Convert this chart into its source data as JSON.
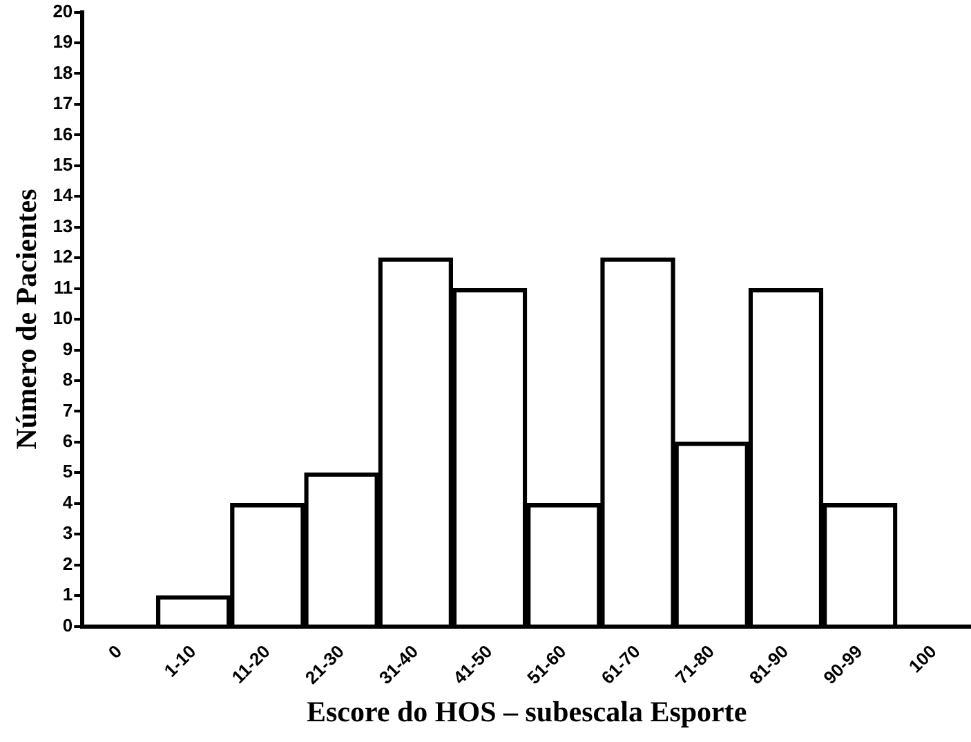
{
  "chart_data": {
    "type": "bar",
    "xlabel": "Escore do HOS – subescala Esporte",
    "ylabel": "Número de Pacientes",
    "categories": [
      "0",
      "1-10",
      "11-20",
      "21-30",
      "31-40",
      "41-50",
      "51-60",
      "61-70",
      "71-80",
      "81-90",
      "90-99",
      "100"
    ],
    "values": [
      0,
      1,
      4,
      5,
      12,
      11,
      4,
      12,
      6,
      11,
      4,
      0
    ],
    "color": "#000000",
    "ylim": [
      0,
      20
    ],
    "yticks": [
      0,
      1,
      2,
      3,
      4,
      5,
      6,
      7,
      8,
      9,
      10,
      11,
      12,
      13,
      14,
      15,
      16,
      17,
      18,
      19,
      20
    ],
    "grid": false,
    "legend": false
  }
}
